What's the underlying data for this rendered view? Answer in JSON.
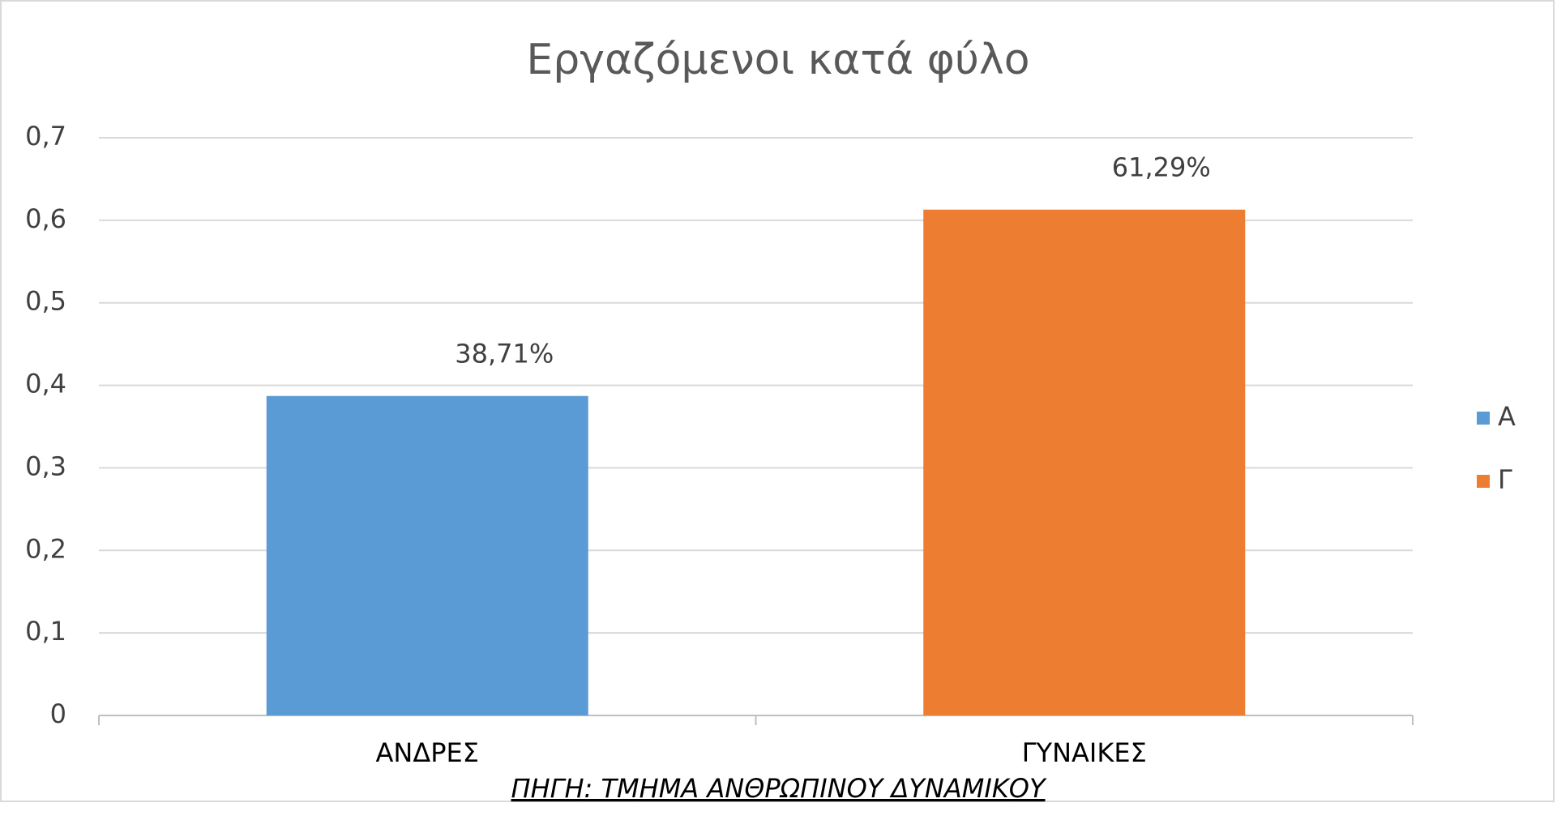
{
  "chart_data": {
    "type": "bar",
    "title": "Εργαζόμενοι κατά φύλο",
    "categories": [
      "ΑΝΔΡΕΣ",
      "ΓΥΝΑΙΚΕΣ"
    ],
    "series": [
      {
        "name": "Α",
        "color": "#5b9bd5",
        "values": [
          0.3871,
          null
        ],
        "value_labels": [
          "38,71%",
          null
        ]
      },
      {
        "name": "Γ",
        "color": "#ed7d31",
        "values": [
          null,
          0.6129
        ],
        "value_labels": [
          null,
          "61,29%"
        ]
      }
    ],
    "ylim": [
      0,
      0.7
    ],
    "yticks": [
      0,
      {
        "value": 0.1,
        "label": "0,1"
      },
      {
        "value": 0.2,
        "label": "0,2"
      },
      {
        "value": 0.3,
        "label": "0,3"
      },
      {
        "value": 0.4,
        "label": "0,4"
      },
      {
        "value": 0.5,
        "label": "0,5"
      },
      {
        "value": 0.6,
        "label": "0,6"
      },
      {
        "value": 0.7,
        "label": "0,7"
      }
    ],
    "grid": true,
    "legend": "right",
    "source": "ΠΗΓΗ: ΤΜΗΜΑ ΑΝΘΡΩΠΙΝΟΥ ΔΥΝΑΜΙΚΟΥ"
  }
}
